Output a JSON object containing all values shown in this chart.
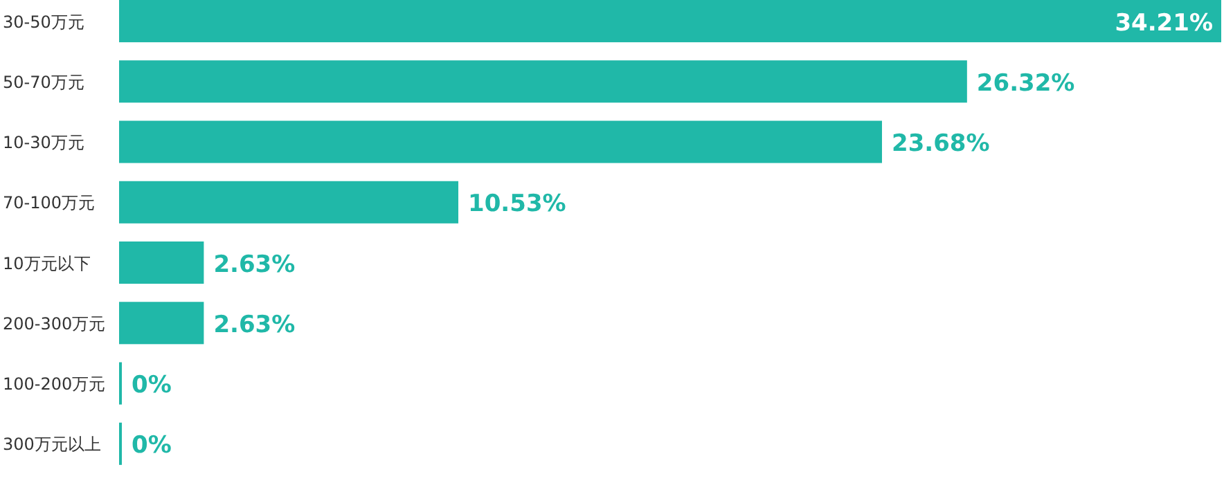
{
  "chart_data": {
    "type": "bar",
    "orientation": "horizontal",
    "categories": [
      "30-50万元",
      "50-70万元",
      "10-30万元",
      "70-100万元",
      "10万元以下",
      "200-300万元",
      "100-200万元",
      "300万元以上"
    ],
    "values": [
      34.21,
      26.32,
      23.68,
      10.53,
      2.63,
      2.63,
      0,
      0
    ],
    "value_labels": [
      "34.21%",
      "26.32%",
      "23.68%",
      "10.53%",
      "2.63%",
      "2.63%",
      "0%",
      "0%"
    ],
    "color": "#20b8a8"
  }
}
